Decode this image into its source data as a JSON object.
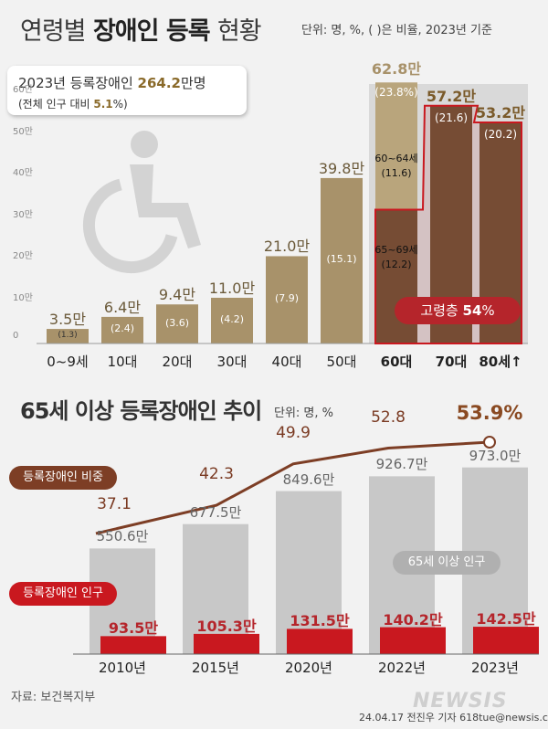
{
  "header": {
    "title_part1": "연령별",
    "title_part2": "장애인 등록",
    "title_part3": "현황",
    "unit_note": "단위: 명, %, ( )은 비율, 2023년 기준"
  },
  "summary": {
    "line1_prefix": "2023년 등록장애인",
    "line1_value": "264.2",
    "line1_suffix": "만명",
    "line2_prefix": "(전체 인구 대비",
    "line2_value": "5.1",
    "line2_suffix": "%)"
  },
  "icon": "wheelchair-icon",
  "senior_badge": {
    "label": "고령층",
    "value": "54",
    "suffix": "%"
  },
  "seg_60s": {
    "upper": "60~64세",
    "upper_pct": "(11.6)",
    "lower": "65~69세",
    "lower_pct": "(12.2)"
  },
  "colors": {
    "bar_gold": "#a8926a",
    "bar_gold_light": "#b9a57c",
    "bar_dark": "#6e5236",
    "bar_bg": "#d9d9d9",
    "senior_red": "#b5252b",
    "line_brown": "#7d3e25",
    "reg_bar": "#c9181f",
    "pop_bar": "#c8c8c8"
  },
  "chart_data": [
    {
      "type": "bar",
      "title": "연령별 장애인 등록 현황",
      "ylabel": "",
      "ylim": [
        0,
        60
      ],
      "yticks": [
        "0",
        "10만",
        "20만",
        "30만",
        "40만",
        "50만",
        "60만"
      ],
      "categories": [
        "0~9세",
        "10대",
        "20대",
        "30대",
        "40대",
        "50대",
        "60대",
        "70대",
        "80세↑"
      ],
      "values": [
        3.5,
        6.4,
        9.4,
        11.0,
        21.0,
        39.8,
        62.8,
        57.2,
        53.2
      ],
      "value_labels": [
        "3.5만",
        "6.4만",
        "9.4만",
        "11.0만",
        "21.0만",
        "39.8만",
        "62.8만",
        "57.2만",
        "53.2만"
      ],
      "percent_labels": [
        "(1.3)",
        "(2.4)",
        "(3.6)",
        "(4.2)",
        "(7.9)",
        "(15.1)",
        "(23.8%)",
        "(21.6)",
        "(20.2)"
      ],
      "sub_segments_60s": [
        {
          "name": "60~64세",
          "percent": 11.6
        },
        {
          "name": "65~69세",
          "percent": 12.2
        }
      ]
    },
    {
      "type": "bar",
      "title": "65세 이상 등록장애인 추이",
      "unit_note": "단위: 명, %",
      "categories": [
        "2010년",
        "2015년",
        "2020년",
        "2022년",
        "2023년"
      ],
      "series": [
        {
          "name": "65세 이상 인구",
          "values": [
            550.6,
            677.5,
            849.6,
            926.7,
            973.0
          ],
          "labels": [
            "550.6만",
            "677.5만",
            "849.6만",
            "926.7만",
            "973.0만"
          ]
        },
        {
          "name": "등록장애인 인구",
          "values": [
            93.5,
            105.3,
            131.5,
            140.2,
            142.5
          ],
          "labels": [
            "93.5만",
            "105.3만",
            "131.5만",
            "140.2만",
            "142.5만"
          ]
        },
        {
          "name": "등록장애인 비중",
          "type": "line",
          "values": [
            37.1,
            42.3,
            49.9,
            52.8,
            53.9
          ],
          "labels": [
            "37.1",
            "42.3",
            "49.9",
            "52.8",
            "53.9%"
          ]
        }
      ]
    }
  ],
  "footer": {
    "source": "자료: 보건복지부",
    "credit": "24.04.17 전진우 기자 618tue@newsis.com",
    "logo": "NEWSIS"
  }
}
